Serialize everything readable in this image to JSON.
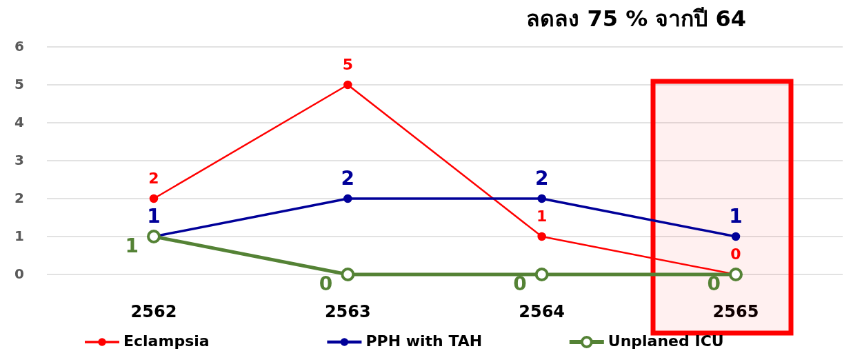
{
  "chart_data": {
    "type": "line",
    "annotations": [
      "ลดลง 75 % จากปี 64"
    ],
    "categories": [
      "2562",
      "2563",
      "2564",
      "2565"
    ],
    "series": [
      {
        "name": "Eclampsia",
        "color": "#ff0000",
        "values": [
          2,
          5,
          1,
          0
        ]
      },
      {
        "name": "PPH with TAH",
        "color": "#000099",
        "values": [
          1,
          2,
          2,
          1
        ]
      },
      {
        "name": "Unplaned ICU",
        "color": "#548235",
        "values": [
          1,
          0,
          0,
          0
        ]
      }
    ],
    "bands": [
      {
        "axis": "x",
        "from": "2565",
        "to": "2565",
        "color": "#ff0000"
      }
    ],
    "ylim": [
      0,
      6
    ],
    "yticks": [
      0,
      1,
      2,
      3,
      4,
      5,
      6
    ],
    "grid": "y",
    "legend": "bottom",
    "marker": "circle",
    "data_labels": true
  }
}
